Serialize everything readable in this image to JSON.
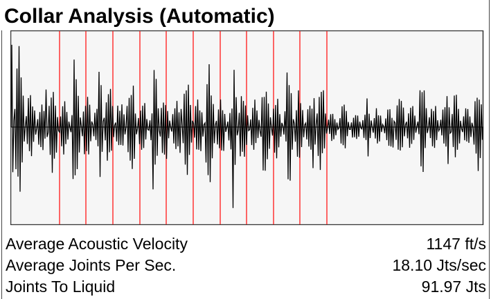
{
  "panel": {
    "title": "Collar Analysis (Automatic)"
  },
  "waveform": {
    "plot_background": "#f6f6f6",
    "wave_color": "#000000",
    "marker_color": "#ff4040",
    "marker_count": 12
  },
  "stats": [
    {
      "label": "Average Acoustic Velocity",
      "value": "1147 ft/s"
    },
    {
      "label": "Average Joints Per Sec.",
      "value": "18.10 Jts/sec"
    },
    {
      "label": "Joints To Liquid",
      "value": "91.97 Jts"
    }
  ]
}
